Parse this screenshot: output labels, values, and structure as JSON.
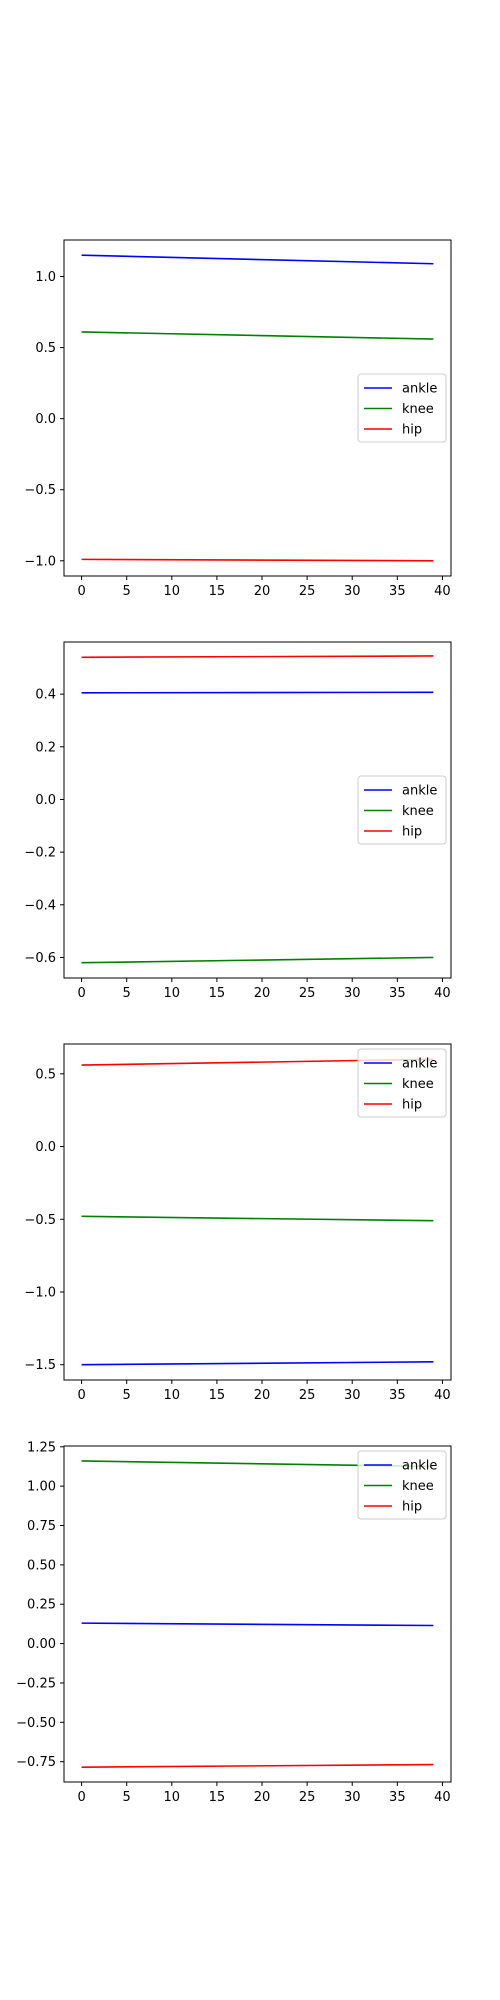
{
  "chart_data": [
    {
      "type": "line",
      "x": [
        0,
        39
      ],
      "xlim": [
        -1.95,
        40.95
      ],
      "ylim": [
        -1.107,
        1.257
      ],
      "xticks": [
        "0",
        "5",
        "10",
        "15",
        "20",
        "25",
        "30",
        "35",
        "40"
      ],
      "yticks": [
        "1.0",
        "0.5",
        "0.0",
        "−0.5",
        "−1.0"
      ],
      "grid": false,
      "legend_position": "center-right",
      "series": [
        {
          "name": "ankle",
          "color": "#0000ff",
          "values": [
            1.15,
            1.09
          ]
        },
        {
          "name": "knee",
          "color": "#008000",
          "values": [
            0.61,
            0.56
          ]
        },
        {
          "name": "hip",
          "color": "#ff0000",
          "values": [
            -0.99,
            -1.0
          ]
        }
      ]
    },
    {
      "type": "line",
      "x": [
        0,
        39
      ],
      "xlim": [
        -1.95,
        40.95
      ],
      "ylim": [
        -0.678,
        0.598
      ],
      "xticks": [
        "0",
        "5",
        "10",
        "15",
        "20",
        "25",
        "30",
        "35",
        "40"
      ],
      "yticks": [
        "0.4",
        "0.2",
        "0.0",
        "−0.2",
        "−0.4",
        "−0.6"
      ],
      "grid": false,
      "legend_position": "center-right",
      "series": [
        {
          "name": "ankle",
          "color": "#0000ff",
          "values": [
            0.405,
            0.407
          ]
        },
        {
          "name": "knee",
          "color": "#008000",
          "values": [
            -0.62,
            -0.6
          ]
        },
        {
          "name": "hip",
          "color": "#ff0000",
          "values": [
            0.54,
            0.545
          ]
        }
      ]
    },
    {
      "type": "line",
      "x": [
        0,
        39
      ],
      "xlim": [
        -1.95,
        40.95
      ],
      "ylim": [
        -1.605,
        0.705
      ],
      "xticks": [
        "0",
        "5",
        "10",
        "15",
        "20",
        "25",
        "30",
        "35",
        "40"
      ],
      "yticks": [
        "0.5",
        "0.0",
        "−0.5",
        "−1.0",
        "−1.5"
      ],
      "grid": false,
      "legend_position": "upper-right",
      "series": [
        {
          "name": "ankle",
          "color": "#0000ff",
          "values": [
            -1.5,
            -1.48
          ]
        },
        {
          "name": "knee",
          "color": "#008000",
          "values": [
            -0.48,
            -0.51
          ]
        },
        {
          "name": "hip",
          "color": "#ff0000",
          "values": [
            0.56,
            0.6
          ]
        }
      ]
    },
    {
      "type": "line",
      "x": [
        0,
        39
      ],
      "xlim": [
        -1.95,
        40.95
      ],
      "ylim": [
        -0.879,
        1.255
      ],
      "xticks": [
        "0",
        "5",
        "10",
        "15",
        "20",
        "25",
        "30",
        "35",
        "40"
      ],
      "yticks": [
        "1.25",
        "1.00",
        "0.75",
        "0.50",
        "0.25",
        "0.00",
        "−0.25",
        "−0.50",
        "−0.75"
      ],
      "grid": false,
      "legend_position": "upper-right",
      "series": [
        {
          "name": "ankle",
          "color": "#0000ff",
          "values": [
            0.13,
            0.115
          ]
        },
        {
          "name": "knee",
          "color": "#008000",
          "values": [
            1.16,
            1.125
          ]
        },
        {
          "name": "hip",
          "color": "#ff0000",
          "values": [
            -0.785,
            -0.768
          ]
        }
      ]
    }
  ]
}
